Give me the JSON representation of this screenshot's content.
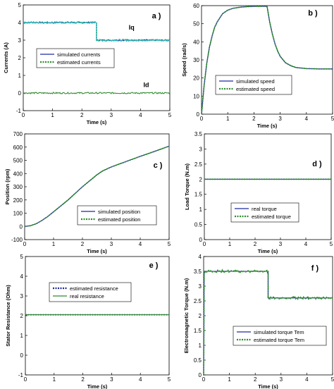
{
  "chart_data": [
    {
      "id": "a",
      "type": "line",
      "panel_label": "a )",
      "xlabel": "Time (s)",
      "ylabel": "Currents (A)",
      "xlim": [
        0,
        5
      ],
      "ylim": [
        -1,
        5
      ],
      "xticks": [
        0,
        1,
        2,
        3,
        4,
        5
      ],
      "yticks": [
        -1,
        0,
        1,
        2,
        3,
        4,
        5
      ],
      "grid": false,
      "legend": "middle-left",
      "annotations": [
        {
          "text": "Iq",
          "x": 3.6,
          "y": 3.6
        },
        {
          "text": "Id",
          "x": 4.1,
          "y": 0.35
        }
      ],
      "series": [
        {
          "name": "simulated currents",
          "color": "#1f2a9e",
          "style": "solid",
          "x": [
            0,
            2.5,
            2.5,
            5
          ],
          "y": [
            4.0,
            4.0,
            3.0,
            3.0
          ]
        },
        {
          "name": "estimated currents",
          "color": "#2e8b2e",
          "style": "dotted",
          "x": [
            0,
            2.5,
            2.5,
            5
          ],
          "y": [
            4.0,
            4.0,
            3.0,
            3.0
          ]
        },
        {
          "name": "",
          "color": "#2e8b2e",
          "style": "solid",
          "x": [
            0,
            5
          ],
          "y": [
            0,
            0
          ]
        }
      ]
    },
    {
      "id": "b",
      "type": "line",
      "panel_label": "b )",
      "xlabel": "Time (s)",
      "ylabel": "Speed (rad/s)",
      "xlim": [
        0,
        5
      ],
      "ylim": [
        0,
        60
      ],
      "xticks": [
        0,
        1,
        2,
        3,
        4,
        5
      ],
      "yticks": [
        0,
        10,
        20,
        30,
        40,
        50,
        60
      ],
      "grid": false,
      "legend": "bottom-right",
      "series": [
        {
          "name": "simulated speed",
          "color": "#1f2a9e",
          "style": "solid",
          "x": [
            0,
            0.1,
            0.2,
            0.3,
            0.4,
            0.5,
            0.6,
            0.8,
            1.0,
            1.2,
            1.5,
            1.8,
            2.1,
            2.5,
            2.6,
            2.7,
            2.8,
            2.9,
            3.0,
            3.2,
            3.4,
            3.6,
            4.0,
            4.5,
            5.0
          ],
          "y": [
            0,
            16,
            28,
            37,
            43,
            48,
            51,
            55.5,
            57.5,
            58.5,
            59.2,
            59.5,
            59.6,
            59.6,
            51,
            44.5,
            39,
            35,
            32,
            28.5,
            26.8,
            25.8,
            25.2,
            25.0,
            25.0
          ]
        },
        {
          "name": "estimated speed",
          "color": "#2e8b2e",
          "style": "dotted",
          "x": [
            0,
            0.1,
            0.2,
            0.3,
            0.4,
            0.5,
            0.6,
            0.8,
            1.0,
            1.2,
            1.5,
            1.8,
            2.1,
            2.5,
            2.6,
            2.7,
            2.8,
            2.9,
            3.0,
            3.2,
            3.4,
            3.6,
            4.0,
            4.5,
            5.0
          ],
          "y": [
            0,
            16,
            28,
            37,
            43,
            48,
            51,
            55.5,
            57.5,
            58.5,
            59.2,
            59.5,
            59.6,
            59.6,
            51,
            44.5,
            39,
            35,
            32,
            28.5,
            26.8,
            25.8,
            25.2,
            25.0,
            25.0
          ]
        }
      ]
    },
    {
      "id": "c",
      "type": "line",
      "panel_label": "c )",
      "xlabel": "Time (s)",
      "ylabel": "Position (rpm)",
      "xlim": [
        0,
        5
      ],
      "ylim": [
        -100,
        700
      ],
      "xticks": [
        0,
        1,
        2,
        3,
        4,
        5
      ],
      "yticks": [
        -100,
        0,
        100,
        200,
        300,
        400,
        500,
        600,
        700
      ],
      "grid": false,
      "legend": "middle-right",
      "series": [
        {
          "name": "simulated position",
          "color": "#1f2a9e",
          "style": "solid",
          "x": [
            0,
            0.2,
            0.4,
            0.6,
            0.8,
            1.0,
            1.5,
            2.0,
            2.5,
            2.7,
            3.0,
            3.5,
            4.0,
            4.5,
            5.0
          ],
          "y": [
            0,
            5,
            20,
            45,
            75,
            110,
            200,
            300,
            390,
            420,
            450,
            490,
            530,
            568,
            607
          ]
        },
        {
          "name": "estimated position",
          "color": "#2e8b2e",
          "style": "dotted",
          "x": [
            0,
            0.2,
            0.4,
            0.6,
            0.8,
            1.0,
            1.5,
            2.0,
            2.5,
            2.7,
            3.0,
            3.5,
            4.0,
            4.5,
            5.0
          ],
          "y": [
            0,
            5,
            20,
            45,
            75,
            110,
            200,
            300,
            390,
            420,
            450,
            490,
            530,
            568,
            607
          ]
        }
      ]
    },
    {
      "id": "d",
      "type": "line",
      "panel_label": "d )",
      "xlabel": "Time (s)",
      "ylabel": "Load Torque (N.m)",
      "xlim": [
        0,
        5
      ],
      "ylim": [
        0,
        3.5
      ],
      "xticks": [
        0,
        1,
        2,
        3,
        4,
        5
      ],
      "yticks": [
        0,
        0.5,
        1,
        1.5,
        2,
        2.5,
        3,
        3.5
      ],
      "grid": false,
      "legend": "middle-center",
      "series": [
        {
          "name": "real torque",
          "color": "#1f2a9e",
          "style": "solid",
          "x": [
            0,
            5
          ],
          "y": [
            2.0,
            2.0
          ]
        },
        {
          "name": "estimated torque",
          "color": "#2e8b2e",
          "style": "dotted",
          "x": [
            0,
            5
          ],
          "y": [
            2.0,
            2.0
          ]
        }
      ]
    },
    {
      "id": "e",
      "type": "line",
      "panel_label": "e )",
      "xlabel": "Time (s)",
      "ylabel": "Stator Resistance (Ohm)",
      "xlim": [
        0,
        5
      ],
      "ylim": [
        -1,
        5
      ],
      "xticks": [
        0,
        1,
        2,
        3,
        4,
        5
      ],
      "yticks": [
        -1,
        0,
        1,
        2,
        3,
        4,
        5
      ],
      "grid": false,
      "legend": "upper-center",
      "series": [
        {
          "name": "estimated resistance",
          "color": "#1f2a9e",
          "style": "dotted",
          "x": [
            0,
            5
          ],
          "y": [
            2.05,
            2.05
          ]
        },
        {
          "name": "real resistance",
          "color": "#2e8b2e",
          "style": "solid",
          "x": [
            0,
            5
          ],
          "y": [
            2.05,
            2.05
          ]
        }
      ]
    },
    {
      "id": "f",
      "type": "line",
      "panel_label": "f )",
      "xlabel": "Time (s)",
      "ylabel": "Electromagnetic Torque (N.m)",
      "xlim": [
        0,
        5
      ],
      "ylim": [
        0,
        4
      ],
      "xticks": [
        0,
        1,
        2,
        3,
        4,
        5
      ],
      "yticks": [
        0,
        0.5,
        1,
        1.5,
        2,
        2.5,
        3,
        3.5,
        4
      ],
      "grid": false,
      "legend": "lower-right",
      "series": [
        {
          "name": "simulated torque Tem",
          "color": "#1f2a9e",
          "style": "solid",
          "x": [
            0,
            0.02,
            2.5,
            2.5,
            5
          ],
          "y": [
            0,
            3.5,
            3.5,
            2.6,
            2.6
          ]
        },
        {
          "name": "estimated torque Tem",
          "color": "#2e8b2e",
          "style": "dotted",
          "x": [
            0,
            0.02,
            2.5,
            2.5,
            5
          ],
          "y": [
            0,
            3.5,
            3.5,
            2.6,
            2.6
          ]
        }
      ]
    }
  ]
}
